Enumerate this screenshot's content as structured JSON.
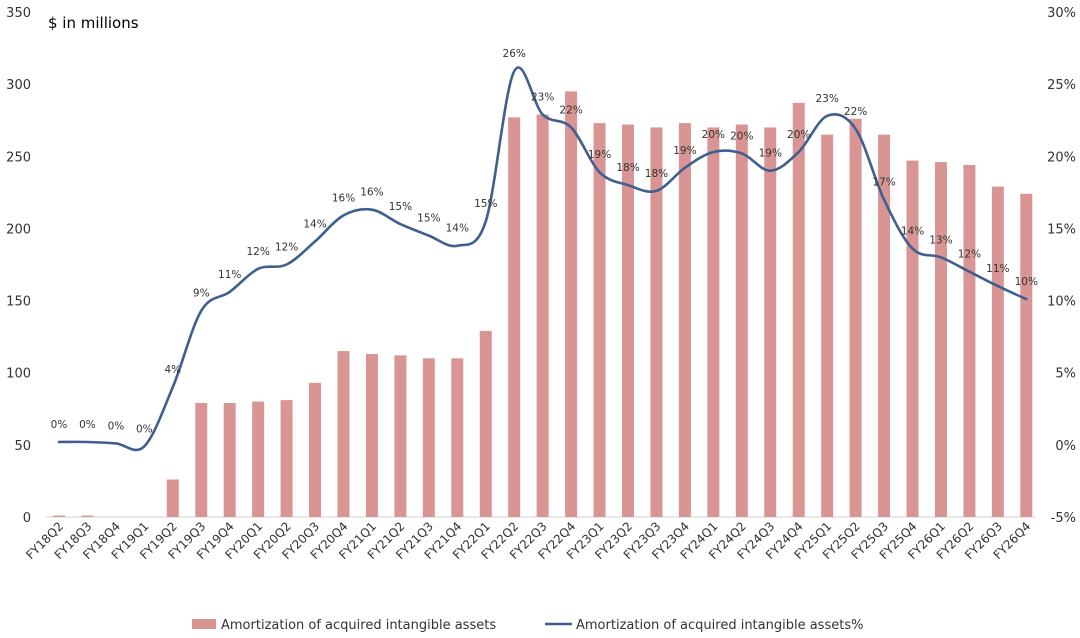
{
  "chart_data": {
    "type": "bar+line",
    "unit_label": "$ in millions",
    "categories": [
      "FY18Q2",
      "FY18Q3",
      "FY18Q4",
      "FY19Q1",
      "FY19Q2",
      "FY19Q3",
      "FY19Q4",
      "FY20Q1",
      "FY20Q2",
      "FY20Q3",
      "FY20Q4",
      "FY21Q1",
      "FY21Q2",
      "FY21Q3",
      "FY21Q4",
      "FY22Q1",
      "FY22Q2",
      "FY22Q3",
      "FY22Q4",
      "FY23Q1",
      "FY23Q2",
      "FY23Q3",
      "FY23Q4",
      "FY24Q1",
      "FY24Q2",
      "FY24Q3",
      "FY24Q4",
      "FY25Q1",
      "FY25Q2",
      "FY25Q3",
      "FY25Q4",
      "FY26Q1",
      "FY26Q2",
      "FY26Q3",
      "FY26Q4"
    ],
    "series": [
      {
        "name": "Amortization of acquired intangible assets",
        "type": "bar",
        "axis": "left",
        "color": "#d99593",
        "values": [
          1,
          1,
          0,
          0,
          26,
          79,
          79,
          80,
          81,
          93,
          115,
          113,
          112,
          110,
          110,
          129,
          277,
          279,
          295,
          273,
          272,
          270,
          273,
          270,
          272,
          270,
          287,
          265,
          276,
          265,
          247,
          246,
          244,
          229,
          224
        ]
      },
      {
        "name": "Amortization of acquired intangible assets%",
        "type": "line",
        "axis": "right",
        "color": "#3f5f8f",
        "values": [
          0.2,
          0.2,
          0.1,
          -0.1,
          4,
          9.3,
          10.6,
          12.2,
          12.5,
          14.1,
          15.9,
          16.3,
          15.3,
          14.5,
          13.8,
          15.5,
          25.9,
          22.9,
          22.0,
          18.9,
          18.0,
          17.6,
          19.2,
          20.3,
          20.2,
          19.0,
          20.3,
          22.8,
          21.9,
          17.0,
          13.6,
          13.0,
          12.0,
          11.0,
          10.1
        ],
        "labels": [
          "0%",
          "0%",
          "0%",
          "0%",
          "4%",
          "9%",
          "11%",
          "12%",
          "12%",
          "14%",
          "16%",
          "16%",
          "15%",
          "15%",
          "14%",
          "15%",
          "26%",
          "23%",
          "22%",
          "19%",
          "18%",
          "18%",
          "19%",
          "20%",
          "20%",
          "19%",
          "20%",
          "23%",
          "22%",
          "17%",
          "14%",
          "13%",
          "12%",
          "11%",
          "10%"
        ]
      }
    ],
    "y_left": {
      "min": 0,
      "max": 350,
      "ticks": [
        "0",
        "50",
        "100",
        "150",
        "200",
        "250",
        "300",
        "350"
      ]
    },
    "y_right": {
      "min": -5,
      "max": 30,
      "ticks": [
        "-5%",
        "0%",
        "5%",
        "10%",
        "15%",
        "20%",
        "25%",
        "30%"
      ]
    },
    "grid": false,
    "legend_position": "bottom"
  }
}
